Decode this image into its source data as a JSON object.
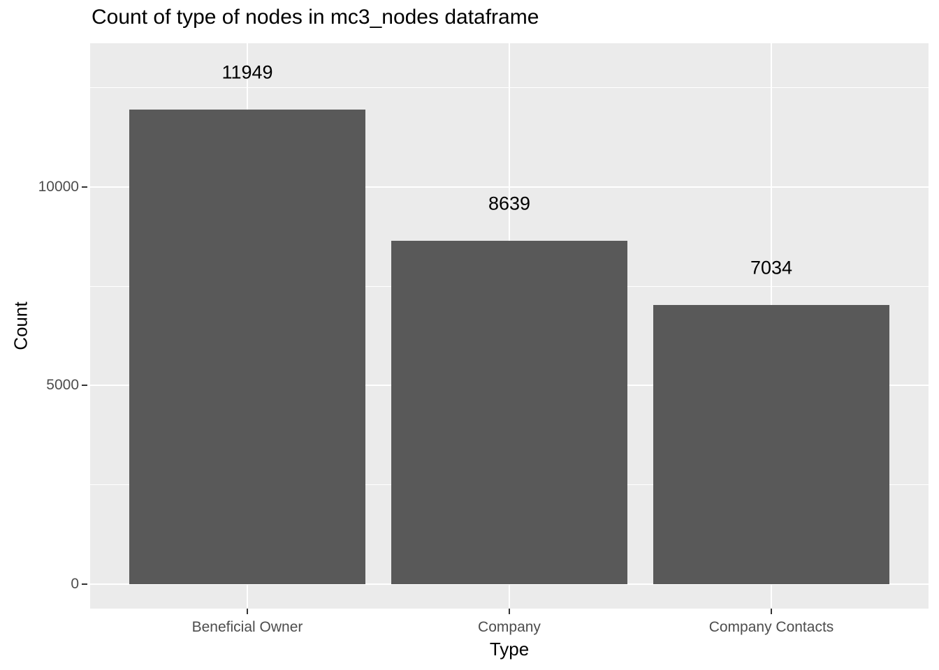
{
  "chart_data": {
    "type": "bar",
    "title": "Count of type of nodes in mc3_nodes dataframe",
    "xlabel": "Type",
    "ylabel": "Count",
    "categories": [
      "Beneficial Owner",
      "Company",
      "Company Contacts"
    ],
    "values": [
      11949,
      8639,
      7034
    ],
    "bar_labels": [
      "11949",
      "8639",
      "7034"
    ],
    "y_ticks": [
      0,
      5000,
      10000
    ],
    "y_tick_labels": [
      "0",
      "5000",
      "10000"
    ],
    "y_minor_gridlines": [
      2500,
      7500,
      12500
    ],
    "ylim": [
      -615,
      13620
    ],
    "grid": true,
    "legend_position": "none",
    "colors": {
      "bar": "#595959",
      "panel_background": "#EBEBEB",
      "gridline": "#FFFFFF",
      "axis_text": "#4D4D4D",
      "tick_mark": "#333333",
      "title_text": "#000000",
      "page_background": "#FFFFFF"
    }
  }
}
